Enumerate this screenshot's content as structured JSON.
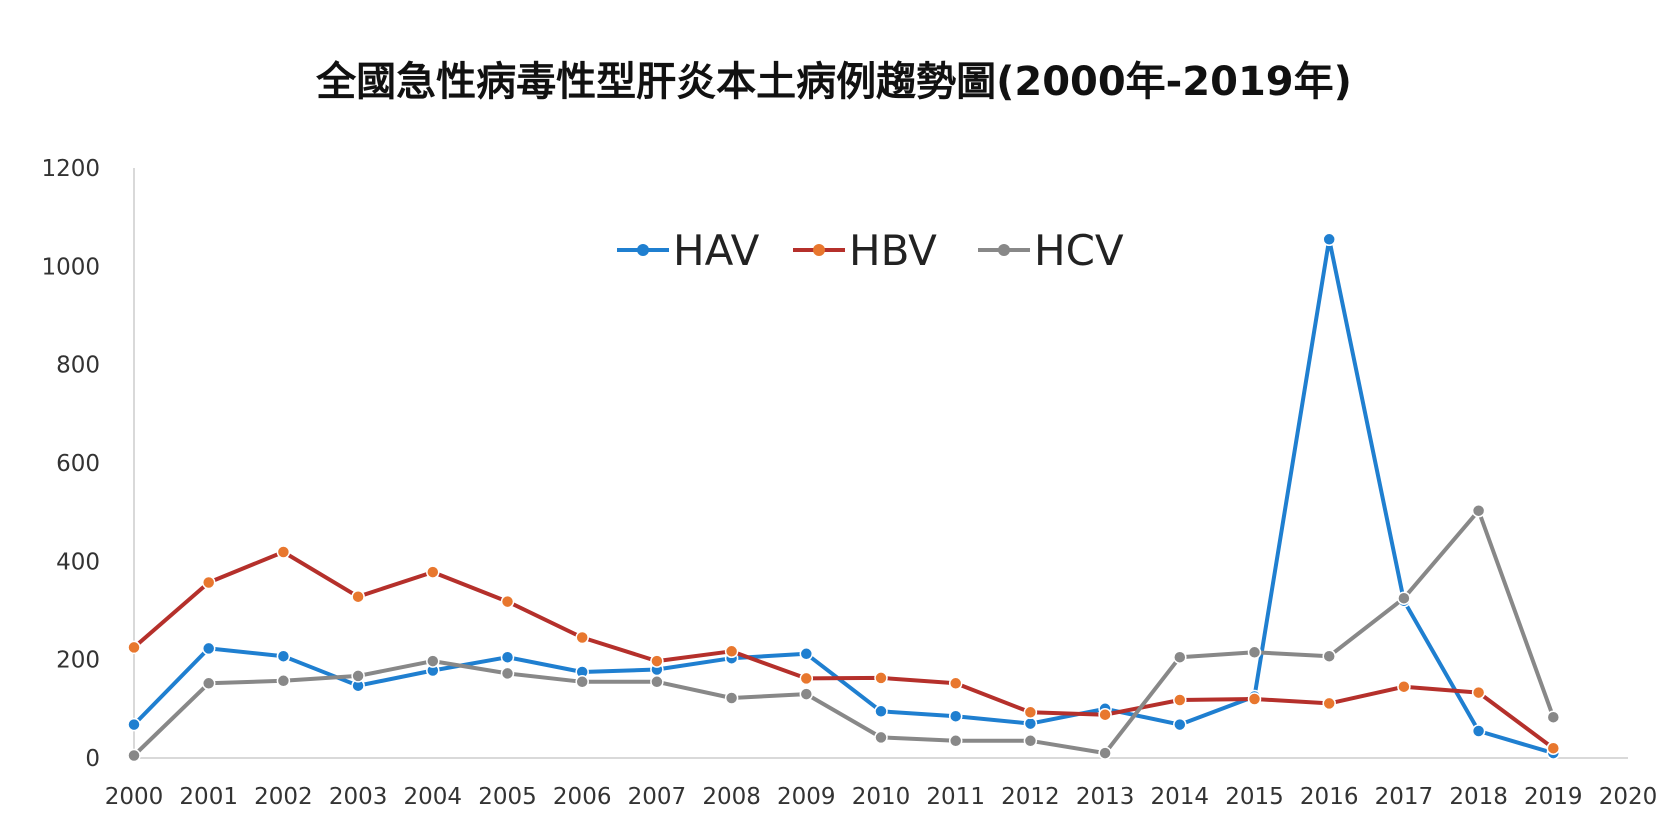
{
  "chart_data": {
    "type": "line",
    "title": "全國急性病毒性型肝炎本土病例趨勢圖(2000年-2019年)",
    "xlabel": "",
    "ylabel": "",
    "xlim": [
      2000,
      2020
    ],
    "ylim": [
      0,
      1200
    ],
    "x_ticks": [
      "2000",
      "2001",
      "2002",
      "2003",
      "2004",
      "2005",
      "2006",
      "2007",
      "2008",
      "2009",
      "2010",
      "2011",
      "2012",
      "2013",
      "2014",
      "2015",
      "2016",
      "2017",
      "2018",
      "2019",
      "2020"
    ],
    "y_ticks": [
      "0",
      "200",
      "400",
      "600",
      "800",
      "1000",
      "1200"
    ],
    "grid": false,
    "legend_position": "top-center",
    "x": [
      2000,
      2001,
      2002,
      2003,
      2004,
      2005,
      2006,
      2007,
      2008,
      2009,
      2010,
      2011,
      2012,
      2013,
      2014,
      2015,
      2016,
      2017,
      2018,
      2019
    ],
    "series": [
      {
        "name": "HAV",
        "color": "#1f7fd0",
        "values": [
          68,
          223,
          207,
          147,
          178,
          205,
          175,
          180,
          203,
          212,
          95,
          85,
          70,
          100,
          68,
          125,
          1055,
          320,
          55,
          10
        ]
      },
      {
        "name": "HBV",
        "color": "#b5302b",
        "marker_color": "#e8772e",
        "values": [
          225,
          357,
          419,
          328,
          378,
          318,
          245,
          197,
          217,
          162,
          163,
          152,
          93,
          88,
          118,
          120,
          111,
          145,
          133,
          20
        ]
      },
      {
        "name": "HCV",
        "color": "#888888",
        "values": [
          5,
          152,
          157,
          167,
          197,
          172,
          155,
          155,
          122,
          130,
          42,
          35,
          35,
          10,
          205,
          215,
          207,
          325,
          503,
          83
        ]
      }
    ]
  }
}
